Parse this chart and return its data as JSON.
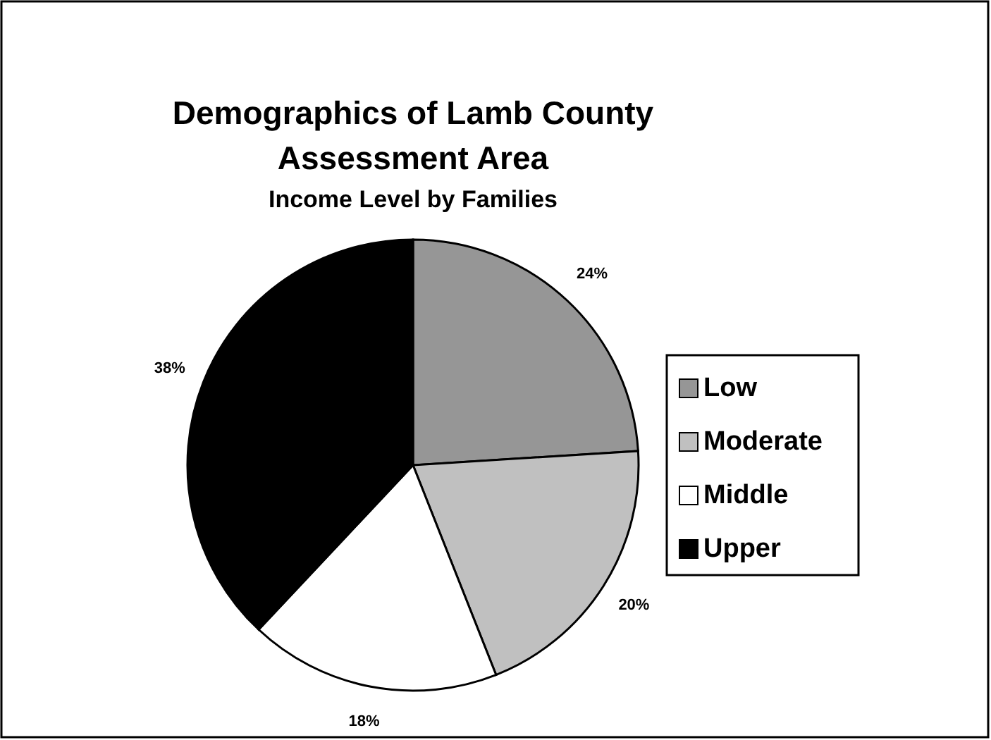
{
  "chart_data": {
    "type": "pie",
    "title": "Demographics of Lamb County Assessment Area",
    "subtitle": "Income Level by Families",
    "categories": [
      "Low",
      "Moderate",
      "Middle",
      "Upper"
    ],
    "values": [
      24,
      20,
      18,
      38
    ],
    "colors": [
      "#969696",
      "#c0c0c0",
      "#ffffff",
      "#000000"
    ],
    "value_labels": [
      "24%",
      "20%",
      "18%",
      "38%"
    ],
    "legend": "right"
  }
}
